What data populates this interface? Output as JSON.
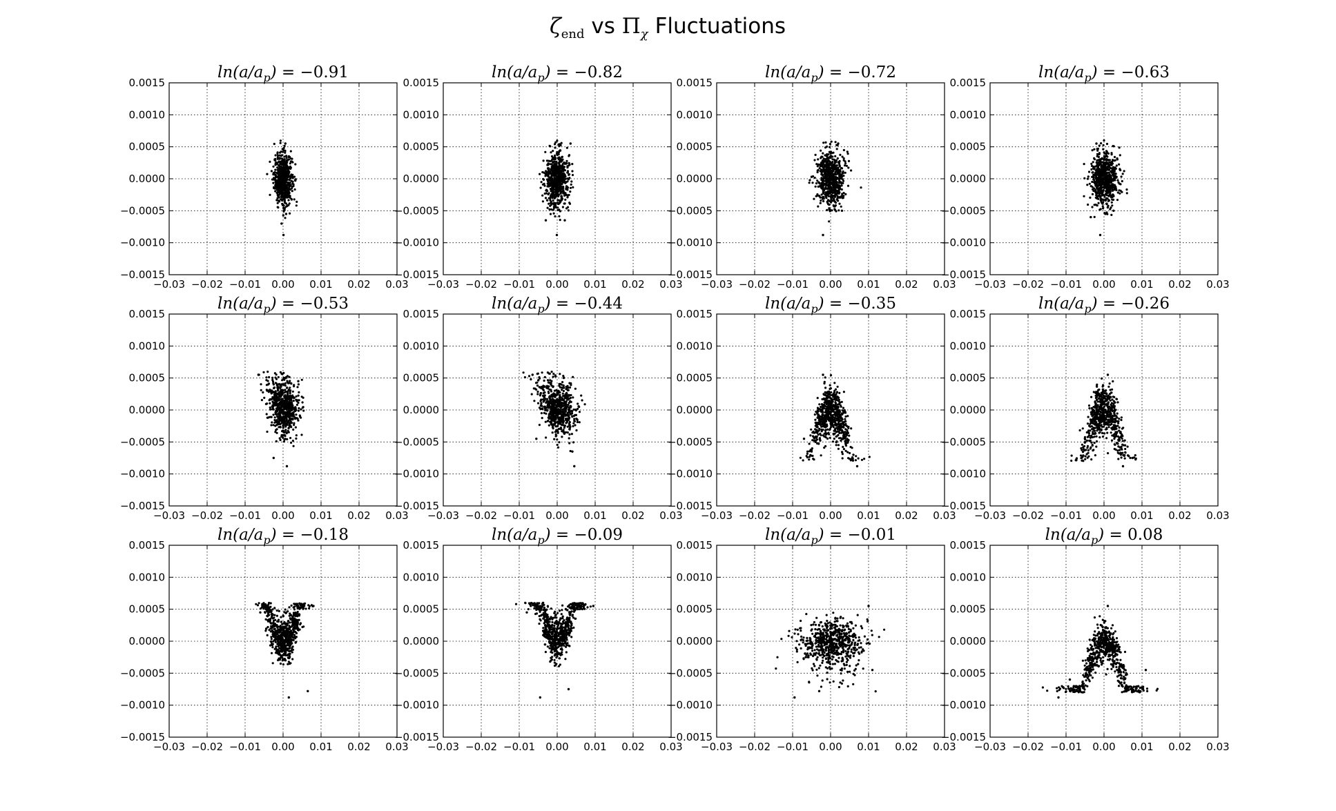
{
  "figure": {
    "title_parts": {
      "zeta": "ζ",
      "sub": "end",
      "vs": " vs ",
      "pi": "Π",
      "chi": "χ",
      "rest": " Fluctuations"
    }
  },
  "chart_data": {
    "type": "scatter",
    "rows": 3,
    "cols": 4,
    "xlim": [
      -0.03,
      0.03
    ],
    "ylim": [
      -0.0015,
      0.0015
    ],
    "xticks": [
      "−0.03",
      "−0.02",
      "−0.01",
      "0.00",
      "0.01",
      "0.02",
      "0.03"
    ],
    "yticks": [
      "0.0015",
      "0.0010",
      "0.0005",
      "0.0000",
      "−0.0005",
      "−0.0010",
      "−0.0015"
    ],
    "grid": true,
    "marker_color": "#000000",
    "panels": [
      {
        "title": "ln(a/a_p) = −0.91",
        "title_value": "−0.91",
        "x_spread": 0.0012,
        "y_spread": 0.0002,
        "shape": "blob",
        "outliers": [
          [
            0.0001,
            -0.00088
          ],
          [
            0.0006,
            0.00055
          ],
          [
            -0.0004,
            -0.0007
          ],
          [
            0.0008,
            -0.00055
          ]
        ]
      },
      {
        "title": "ln(a/a_p) = −0.82",
        "title_value": "−0.82",
        "x_spread": 0.0015,
        "y_spread": 0.00022,
        "shape": "blob",
        "outliers": [
          [
            -0.0001,
            -0.00088
          ],
          [
            0.0035,
            0.00055
          ],
          [
            -0.003,
            -0.00065
          ],
          [
            0.002,
            -0.00065
          ]
        ]
      },
      {
        "title": "ln(a/a_p) = −0.72",
        "title_value": "−0.72",
        "x_spread": 0.0018,
        "y_spread": 0.00022,
        "shape": "blob",
        "outliers": [
          [
            -0.002,
            -0.00088
          ],
          [
            0.002,
            0.00055
          ],
          [
            -0.005,
            3e-05
          ],
          [
            0.003,
            -0.0005
          ]
        ]
      },
      {
        "title": "ln(a/a_p) = −0.63",
        "title_value": "−0.63",
        "x_spread": 0.0018,
        "y_spread": 0.00022,
        "shape": "blob",
        "outliers": [
          [
            -0.001,
            -0.00088
          ],
          [
            -0.002,
            0.00055
          ],
          [
            -0.0035,
            -0.0006
          ],
          [
            0.0025,
            -0.0005
          ]
        ]
      },
      {
        "title": "ln(a/a_p) = −0.53",
        "title_value": "−0.53",
        "x_spread": 0.002,
        "y_spread": 0.00022,
        "shape": "wing",
        "outliers": [
          [
            -0.0065,
            0.00055
          ],
          [
            0.001,
            -0.00088
          ],
          [
            -0.0025,
            -0.00075
          ],
          [
            0.004,
            0.00045
          ]
        ]
      },
      {
        "title": "ln(a/a_p) = −0.44",
        "title_value": "−0.44",
        "x_spread": 0.0024,
        "y_spread": 0.00022,
        "shape": "wing",
        "outliers": [
          [
            -0.0065,
            0.00055
          ],
          [
            0.0045,
            -0.00088
          ],
          [
            0.004,
            -0.00065
          ],
          [
            -0.0055,
            -0.00045
          ]
        ]
      },
      {
        "title": "ln(a/a_p) = −0.35",
        "title_value": "−0.35",
        "x_spread": 0.0028,
        "y_spread": 0.0002,
        "shape": "dome",
        "outliers": [
          [
            0.007,
            -0.00088
          ],
          [
            -0.007,
            -0.00045
          ],
          [
            0.006,
            -0.0007
          ],
          [
            -0.002,
            0.00055
          ]
        ]
      },
      {
        "title": "ln(a/a_p) = −0.26",
        "title_value": "−0.26",
        "x_spread": 0.0028,
        "y_spread": 0.0002,
        "shape": "dome",
        "outliers": [
          [
            0.005,
            -0.00088
          ],
          [
            0.0075,
            -0.00075
          ],
          [
            -0.006,
            -0.0006
          ],
          [
            0.001,
            0.00055
          ]
        ]
      },
      {
        "title": "ln(a/a_p) = −0.18",
        "title_value": "−0.18",
        "x_spread": 0.0025,
        "y_spread": 0.00018,
        "shape": "valley",
        "outliers": [
          [
            0.0015,
            -0.00088
          ],
          [
            0.0065,
            -0.00078
          ],
          [
            0.008,
            0.00055
          ],
          [
            -0.006,
            0.00045
          ]
        ]
      },
      {
        "title": "ln(a/a_p) = −0.09",
        "title_value": "−0.09",
        "x_spread": 0.0032,
        "y_spread": 0.00018,
        "shape": "valley",
        "outliers": [
          [
            -0.0045,
            -0.00088
          ],
          [
            0.0095,
            0.00055
          ],
          [
            -0.008,
            0.00045
          ],
          [
            0.003,
            -0.00075
          ]
        ]
      },
      {
        "title": "ln(a/a_p) = −0.01",
        "title_value": "−0.01",
        "x_spread": 0.0042,
        "y_spread": 0.00017,
        "shape": "flat",
        "outliers": [
          [
            -0.0095,
            -0.00088
          ],
          [
            0.01,
            0.00055
          ],
          [
            -0.003,
            -0.00078
          ],
          [
            0.011,
            -0.00045
          ]
        ]
      },
      {
        "title": "ln(a/a_p) = 0.08",
        "title_value": "0.08",
        "x_spread": 0.0042,
        "y_spread": 0.00017,
        "shape": "dome",
        "outliers": [
          [
            -0.012,
            -0.00088
          ],
          [
            0.001,
            0.00055
          ],
          [
            0.011,
            -0.00045
          ],
          [
            -0.009,
            -0.0006
          ]
        ]
      }
    ]
  }
}
